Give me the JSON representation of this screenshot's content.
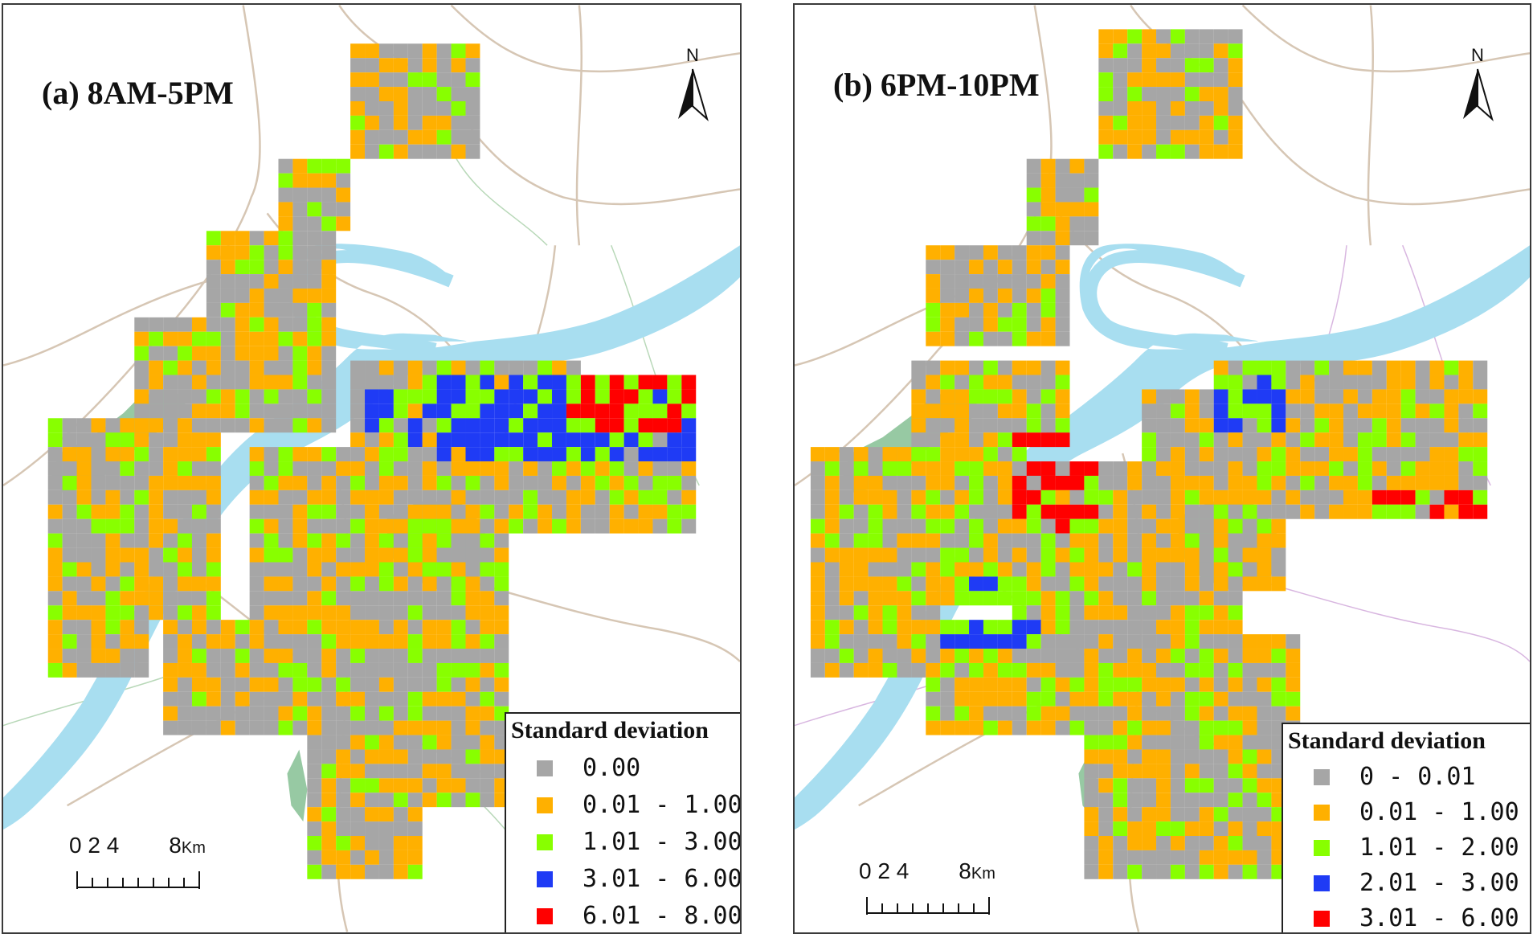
{
  "panels": [
    {
      "title": "(a) 8AM-5PM",
      "north": "N",
      "legend": {
        "title": "Standard deviation",
        "items": [
          {
            "label": "0.00",
            "color": "#a6a6a6"
          },
          {
            "label": "0.01 - 1.00",
            "color": "#ffb000"
          },
          {
            "label": "1.01 - 3.00",
            "color": "#88ff00"
          },
          {
            "label": "3.01 - 6.00",
            "color": "#1f3bf5"
          },
          {
            "label": "6.01 - 8.00",
            "color": "#ff0000"
          }
        ]
      },
      "scale": {
        "ticks": "0 2 4",
        "end": "8",
        "unit": "Km"
      }
    },
    {
      "title": "(b) 6PM-10PM",
      "north": "N",
      "legend": {
        "title": "Standard deviation",
        "items": [
          {
            "label": "0 - 0.01",
            "color": "#a6a6a6"
          },
          {
            "label": "0.01 - 1.00",
            "color": "#ffb000"
          },
          {
            "label": "1.01 - 2.00",
            "color": "#88ff00"
          },
          {
            "label": "2.01 - 3.00",
            "color": "#1f3bf5"
          },
          {
            "label": "3.01 - 6.00",
            "color": "#ff0000"
          }
        ]
      },
      "scale": {
        "ticks": "0 2 4",
        "end": "8",
        "unit": "Km"
      }
    }
  ],
  "colors": {
    "river": "#a8def0",
    "park": "#97c9a3",
    "road": "#d6c6b4",
    "road_minor": "#b8d8b8",
    "road_alt": "#d8b6e0",
    "gray": "#a6a6a6",
    "orange": "#ffb000",
    "green": "#88ff00",
    "blue": "#1f3bf5",
    "red": "#ff0000"
  }
}
